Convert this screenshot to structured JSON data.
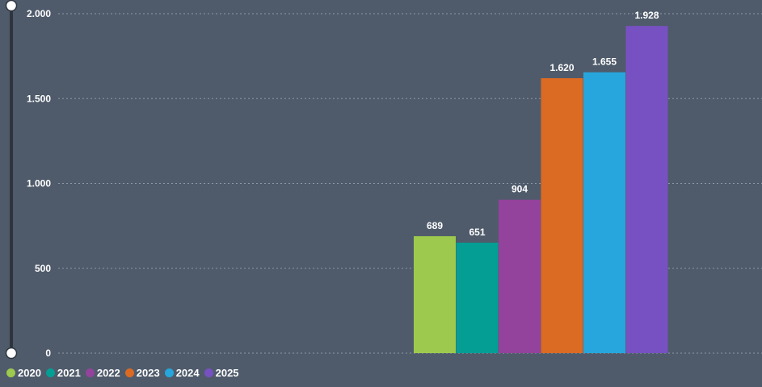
{
  "chart_data": {
    "type": "bar",
    "title": "",
    "xlabel": "",
    "ylabel": "",
    "ylim": [
      0,
      2000
    ],
    "yticks": [
      0,
      500,
      1000,
      1500,
      2000
    ],
    "ytick_labels": [
      "0",
      "500",
      "1.000",
      "1.500",
      "2.000"
    ],
    "grid": true,
    "legend_position": "bottom-left",
    "series": [
      {
        "name": "2020",
        "value": 689,
        "label": "689",
        "color": "#9dc94e"
      },
      {
        "name": "2021",
        "value": 651,
        "label": "651",
        "color": "#049e95"
      },
      {
        "name": "2022",
        "value": 904,
        "label": "904",
        "color": "#93439b"
      },
      {
        "name": "2023",
        "value": 1620,
        "label": "1.620",
        "color": "#db6a23"
      },
      {
        "name": "2024",
        "value": 1655,
        "label": "1.655",
        "color": "#26a6dc"
      },
      {
        "name": "2025",
        "value": 1928,
        "label": "1.928",
        "color": "#7751c1"
      }
    ]
  }
}
